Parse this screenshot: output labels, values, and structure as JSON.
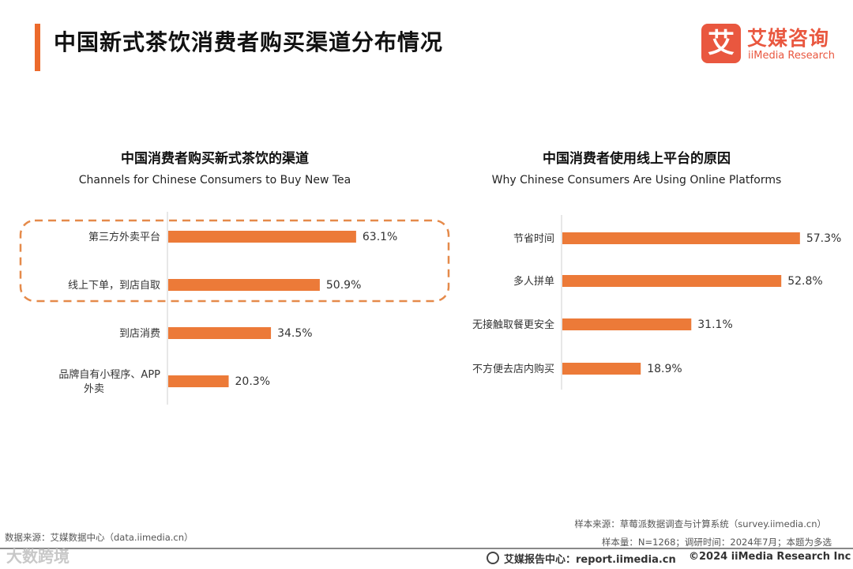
{
  "header": {
    "title": "中国新式茶饮消费者购买渠道分布情况"
  },
  "logo": {
    "mark": "艾",
    "name_cn": "艾媒咨询",
    "name_en": "iiMedia Research"
  },
  "chart_data": [
    {
      "type": "bar",
      "orientation": "horizontal",
      "title": "中国消费者购买新式茶饮的渠道",
      "subtitle": "Channels for Chinese Consumers to Buy New Tea",
      "categories": [
        "第三方外卖平台",
        "线上下单，到店自取",
        "到店消费",
        "品牌自有小程序、APP外卖"
      ],
      "values": [
        63.1,
        50.9,
        34.5,
        20.3
      ],
      "unit": "%",
      "highlight_categories": [
        "第三方外卖平台",
        "线上下单，到店自取"
      ],
      "color": "#ec7a38"
    },
    {
      "type": "bar",
      "orientation": "horizontal",
      "title": "中国消费者使用线上平台的原因",
      "subtitle": "Why Chinese Consumers Are Using Online Platforms",
      "categories": [
        "节省时间",
        "多人拼单",
        "无接触取餐更安全",
        "不方便去店内购买"
      ],
      "values": [
        57.3,
        52.8,
        31.1,
        18.9
      ],
      "unit": "%",
      "color": "#ec7a38"
    }
  ],
  "footer": {
    "data_source": "数据来源：艾媒数据中心（data.iimedia.cn）",
    "sample_source": "样本来源：草莓派数据调查与计算系统（survey.iimedia.cn）",
    "sample_info": "样本量：N=1268；调研时间：2024年7月；本题为多选",
    "report_center": "艾媒报告中心：report.iimedia.cn",
    "copyright": "©2024  iiMedia Research  Inc",
    "watermark": "大数跨境"
  }
}
